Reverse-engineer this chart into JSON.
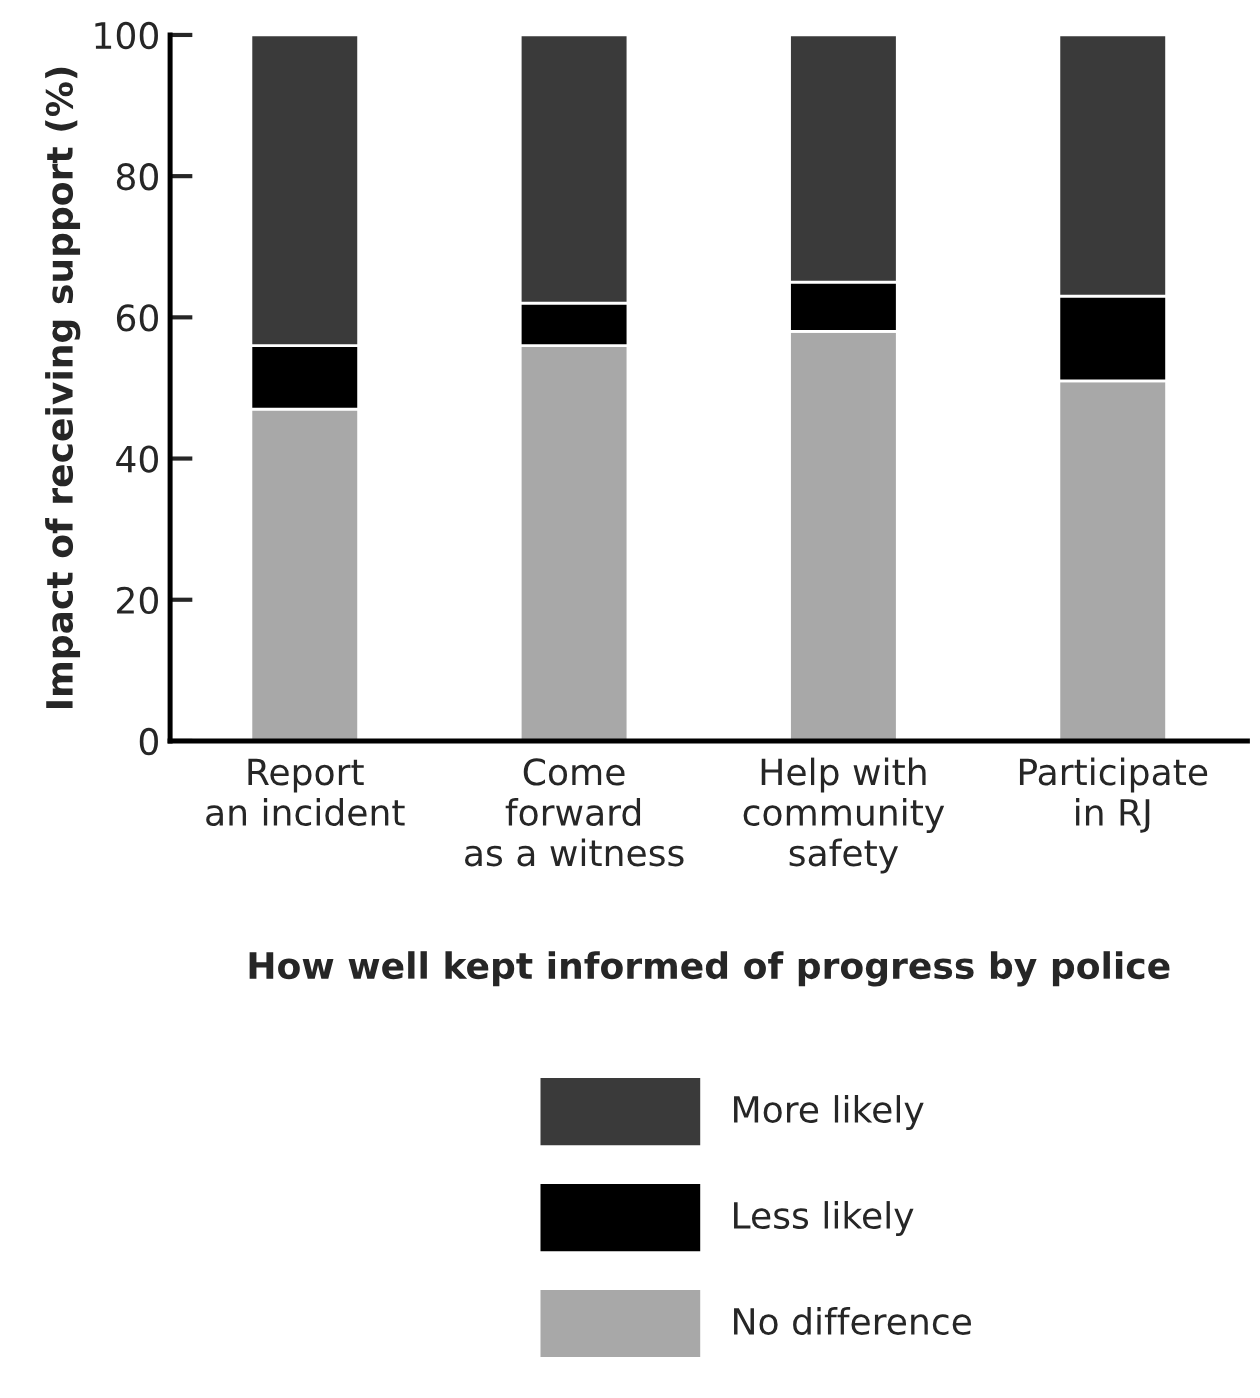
{
  "chart_data": {
    "type": "bar",
    "stacked": true,
    "xlabel": "How well kept informed of progress by police",
    "ylabel": "Impact of receiving support (%)",
    "categories": [
      "Report\nan incident",
      "Come\nforward\nas a witness",
      "Help with\ncommunity\nsafety",
      "Participate\nin RJ"
    ],
    "series": [
      {
        "name": "No difference",
        "color": "#a8a8a8",
        "values": [
          47,
          56,
          58,
          51
        ]
      },
      {
        "name": "Less likely",
        "color": "#000000",
        "values": [
          9,
          6,
          7,
          12
        ]
      },
      {
        "name": "More likely",
        "color": "#3a3a3a",
        "values": [
          44,
          38,
          35,
          37
        ]
      }
    ],
    "ylim": [
      0,
      100
    ],
    "yticks": [
      0,
      20,
      40,
      60,
      80,
      100
    ],
    "grid": false,
    "legend": "bottom"
  }
}
